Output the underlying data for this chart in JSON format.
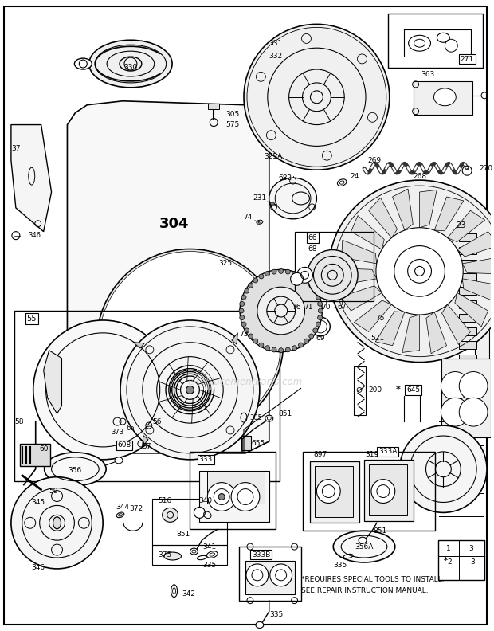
{
  "bg_color": "#ffffff",
  "fig_width": 6.2,
  "fig_height": 7.92,
  "watermark": "eReplacementParts.com",
  "note_line1": "*REQUIRES SPECIAL TOOLS TO INSTALL.",
  "note_line2": "SEE REPAIR INSTRUCTION MANUAL."
}
